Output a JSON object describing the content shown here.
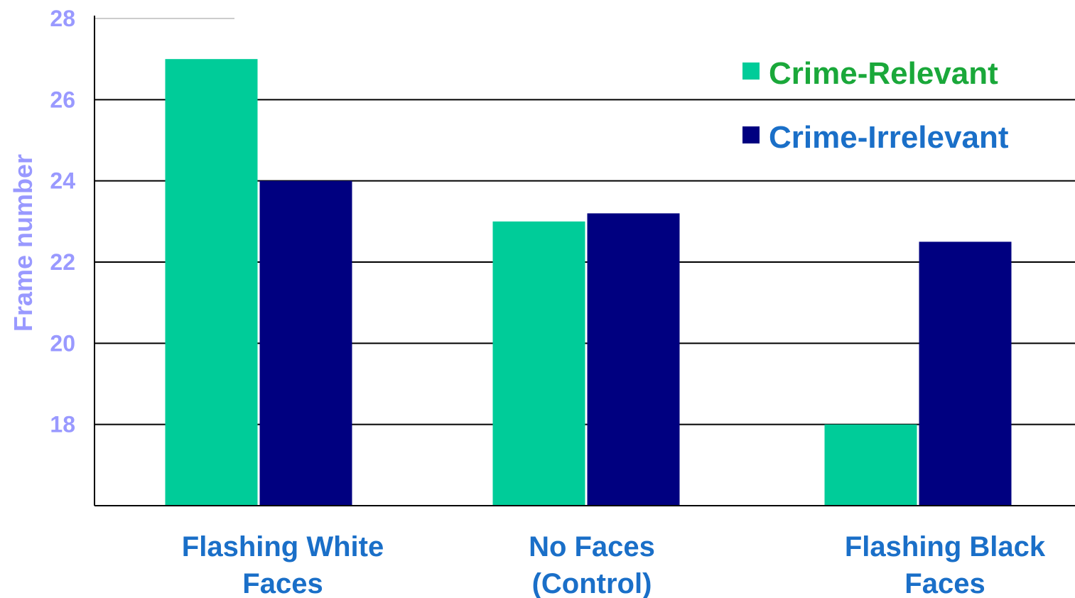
{
  "chart_data": {
    "type": "bar",
    "ylabel": "Frame number",
    "ylim": [
      16,
      28
    ],
    "yticks": [
      18,
      20,
      22,
      24,
      26,
      28
    ],
    "grid": true,
    "legend_position": "top-right",
    "categories": [
      [
        "Flashing White",
        "Faces"
      ],
      [
        "No Faces",
        "(Control)"
      ],
      [
        "Flashing Black",
        "Faces"
      ]
    ],
    "series": [
      {
        "name": "Crime-Relevant",
        "values": [
          27.0,
          23.0,
          18.0
        ],
        "color": "#00cc99",
        "label_color": "#1aa83a"
      },
      {
        "name": "Crime-Irrelevant",
        "values": [
          24.0,
          23.2,
          22.5
        ],
        "color": "#000080",
        "label_color": "#1a6fc8"
      }
    ],
    "colors": {
      "axis_text": "#9999ff",
      "category_text": "#1a6fc8",
      "gridline": "#000000"
    }
  }
}
